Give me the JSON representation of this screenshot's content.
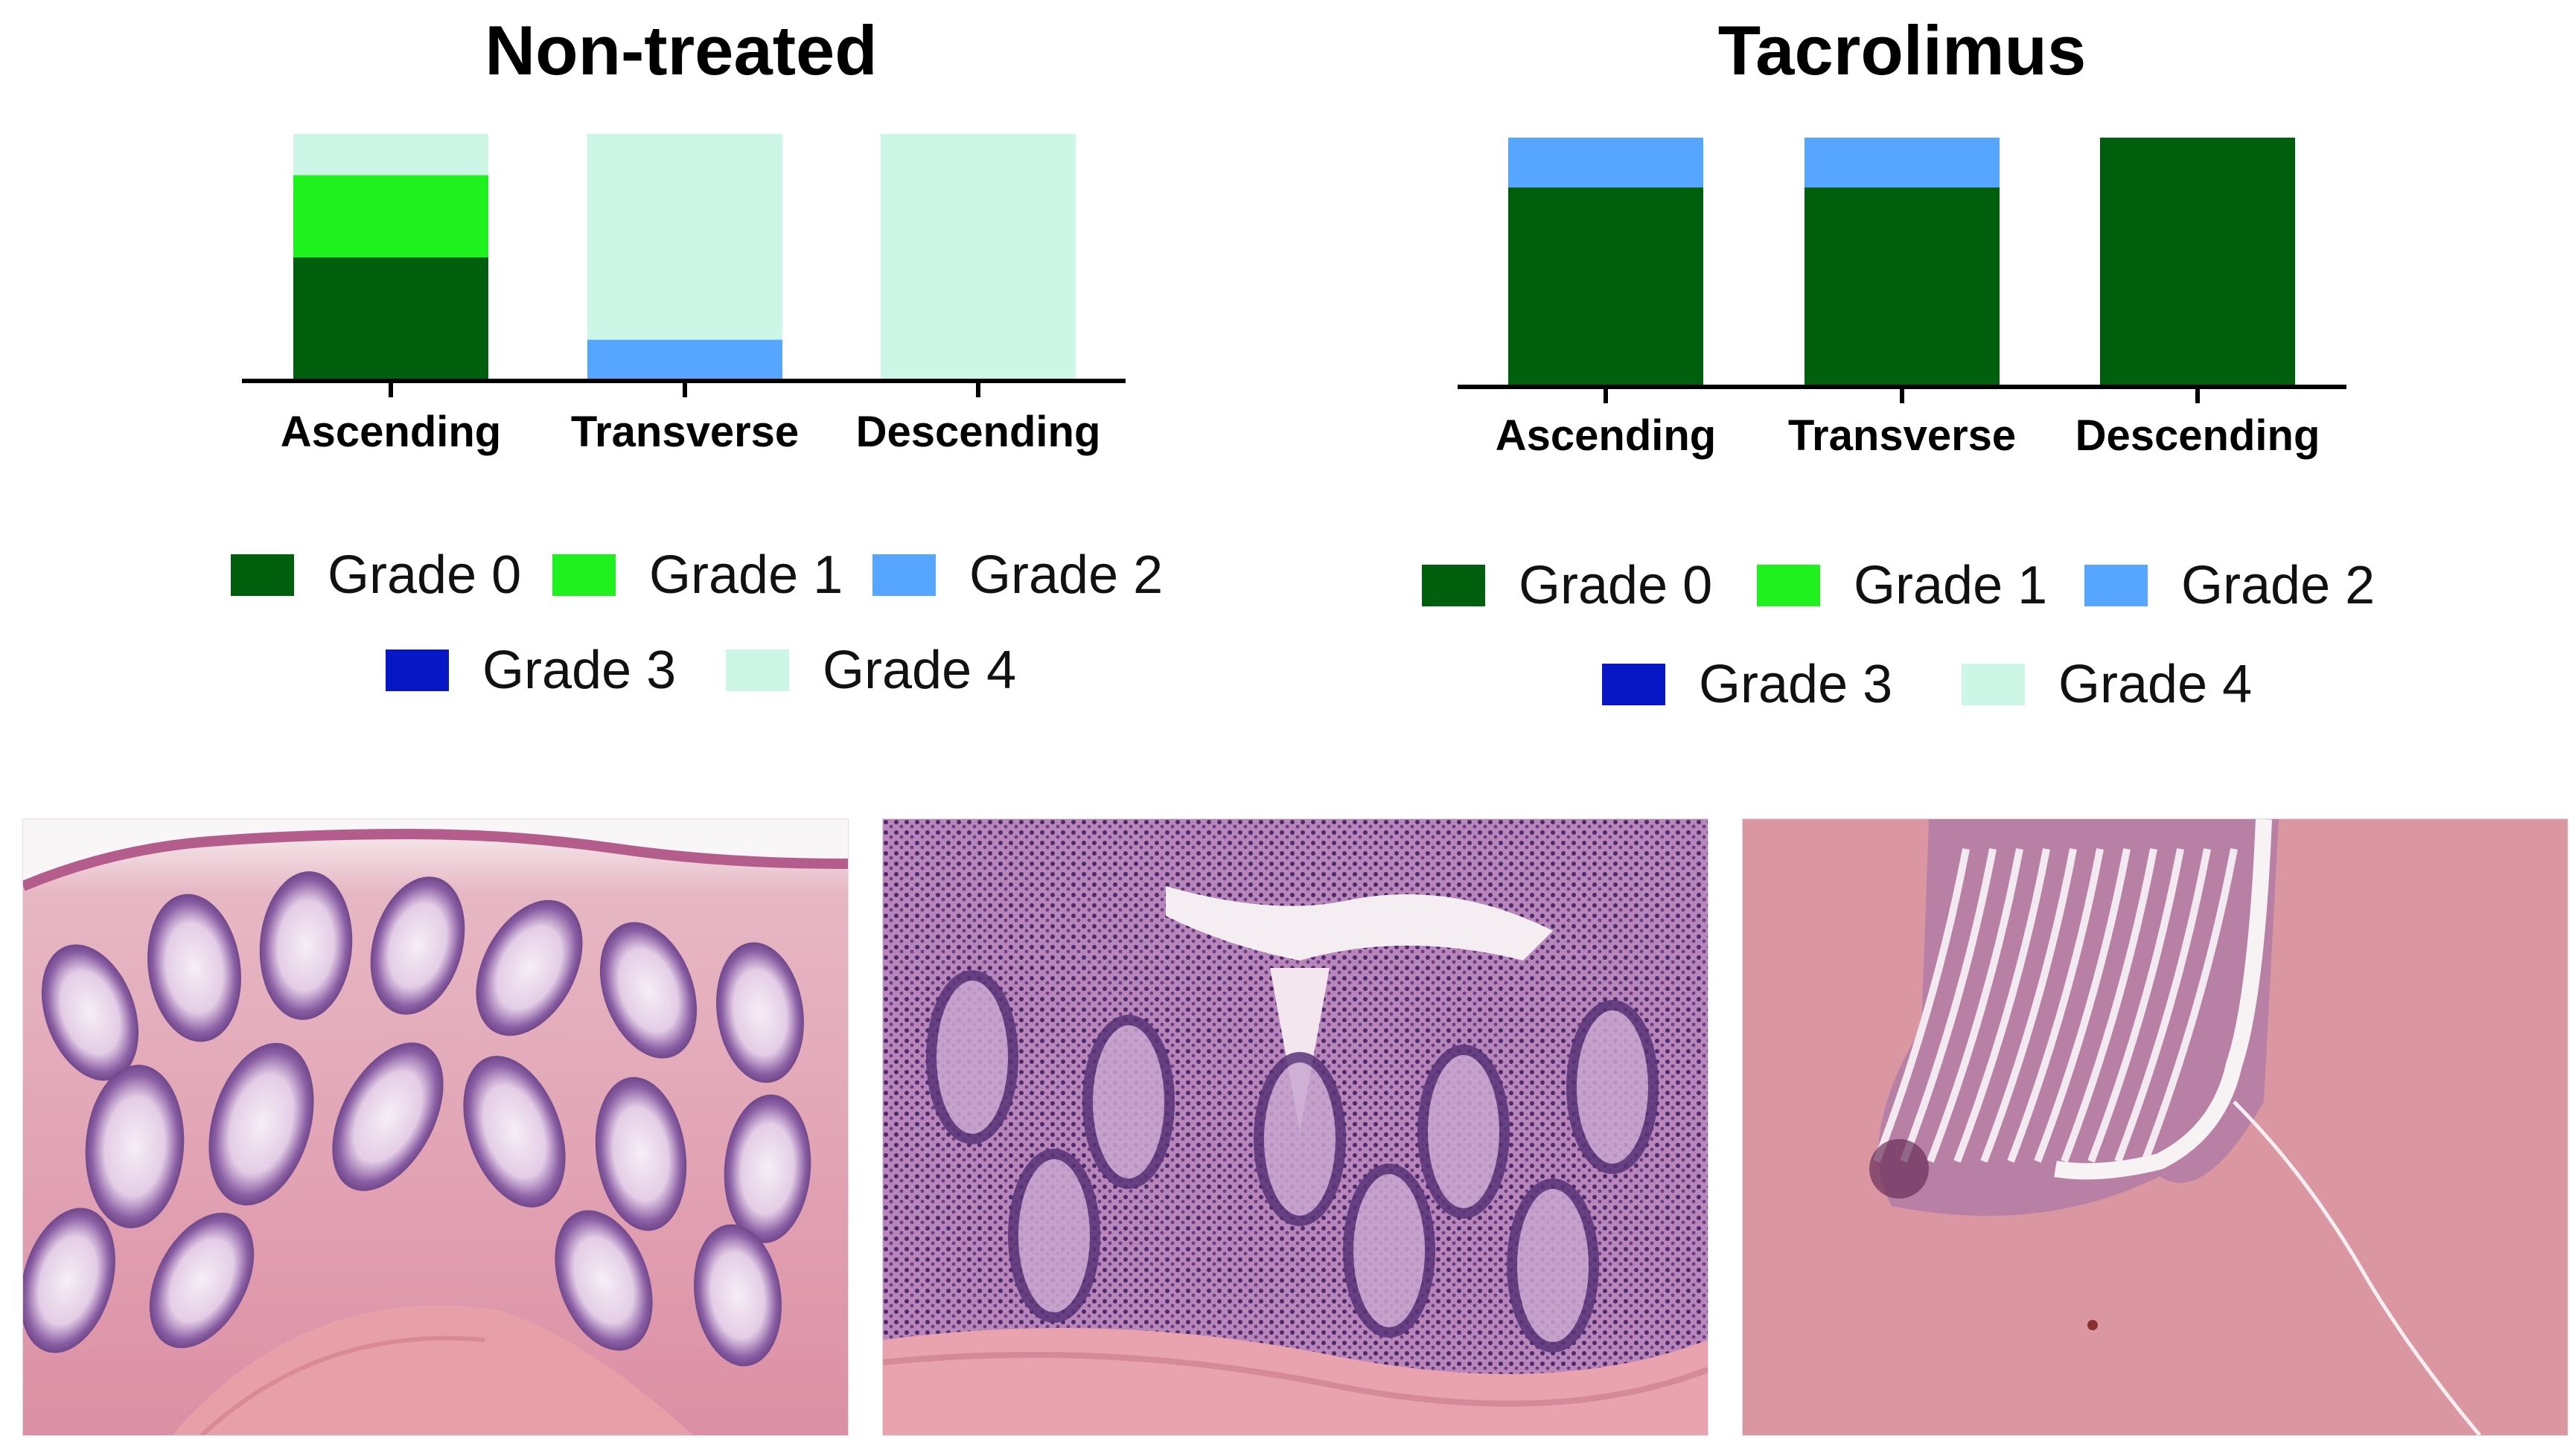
{
  "chart_data": [
    {
      "type": "bar",
      "stacked": true,
      "title": "Non-treated",
      "categories": [
        "Ascending",
        "Transverse",
        "Descending"
      ],
      "series": [
        {
          "name": "Grade 0",
          "color": "#005f0d",
          "values": [
            0.5,
            0.0,
            0.0
          ]
        },
        {
          "name": "Grade 1",
          "color": "#1ef11e",
          "values": [
            0.333,
            0.0,
            0.0
          ]
        },
        {
          "name": "Grade 2",
          "color": "#56a5ff",
          "values": [
            0.0,
            0.167,
            0.0
          ]
        },
        {
          "name": "Grade 3",
          "color": "#0717c6",
          "values": [
            0.0,
            0.0,
            0.0
          ]
        },
        {
          "name": "Grade 4",
          "color": "#ccf7e6",
          "values": [
            0.167,
            0.833,
            1.0
          ]
        }
      ],
      "ylim": [
        0,
        1
      ],
      "legend": "bottom"
    },
    {
      "type": "bar",
      "stacked": true,
      "title": "Tacrolimus",
      "categories": [
        "Ascending",
        "Transverse",
        "Descending"
      ],
      "series": [
        {
          "name": "Grade 0",
          "color": "#005f0d",
          "values": [
            0.8,
            0.8,
            1.0
          ]
        },
        {
          "name": "Grade 1",
          "color": "#1ef11e",
          "values": [
            0.0,
            0.0,
            0.0
          ]
        },
        {
          "name": "Grade 2",
          "color": "#56a5ff",
          "values": [
            0.2,
            0.2,
            0.0
          ]
        },
        {
          "name": "Grade 3",
          "color": "#0717c6",
          "values": [
            0.0,
            0.0,
            0.0
          ]
        },
        {
          "name": "Grade 4",
          "color": "#ccf7e6",
          "values": [
            0.0,
            0.0,
            0.0
          ]
        }
      ],
      "ylim": [
        0,
        1
      ],
      "legend": "bottom"
    }
  ],
  "images": [
    {
      "name": "histology-normal-mucosa"
    },
    {
      "name": "histology-inflamed-mucosa"
    },
    {
      "name": "histology-ulcerated-mucosa"
    }
  ]
}
